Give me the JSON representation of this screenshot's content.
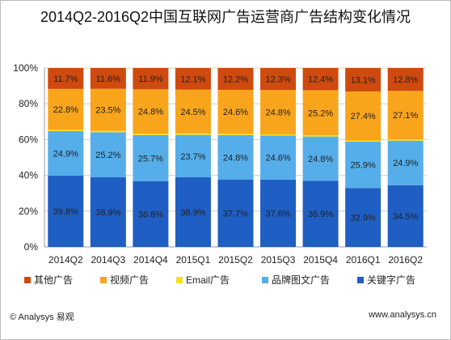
{
  "chart_data": {
    "type": "bar",
    "stacked": true,
    "title": "2014Q2-2016Q2中国互联网广告运营商广告结构变化情况",
    "categories": [
      "2014Q2",
      "2014Q3",
      "2014Q4",
      "2015Q1",
      "2015Q2",
      "2015Q3",
      "2015Q4",
      "2016Q1",
      "2016Q2"
    ],
    "ylim": [
      0,
      100
    ],
    "yticks": [
      "0%",
      "20%",
      "40%",
      "60%",
      "80%",
      "100%"
    ],
    "grid": true,
    "legend_position": "bottom",
    "series": [
      {
        "name": "关键字广告",
        "color": "#1F5EC2",
        "values": [
          39.8,
          38.9,
          36.8,
          38.9,
          37.7,
          37.6,
          36.9,
          32.9,
          34.5
        ]
      },
      {
        "name": "品牌图文广告",
        "color": "#55AEEA",
        "values": [
          24.9,
          25.2,
          25.7,
          23.7,
          24.8,
          24.6,
          24.8,
          25.9,
          24.9
        ]
      },
      {
        "name": "Email广告",
        "color": "#F6E21A",
        "values": [
          0.8,
          0.8,
          0.8,
          0.8,
          0.7,
          0.7,
          0.7,
          0.7,
          0.7
        ]
      },
      {
        "name": "视频广告",
        "color": "#F9A51B",
        "values": [
          22.8,
          23.5,
          24.8,
          24.5,
          24.6,
          24.8,
          25.2,
          27.4,
          27.1
        ]
      },
      {
        "name": "其他广告",
        "color": "#CF4A0E",
        "values": [
          11.7,
          11.6,
          11.9,
          12.1,
          12.2,
          12.3,
          12.4,
          13.1,
          12.8
        ]
      }
    ],
    "legend_order": [
      "其他广告",
      "视频广告",
      "Email广告",
      "品牌图文广告",
      "关键字广告"
    ]
  },
  "footer": {
    "source": "© Analysys 易观",
    "url": "www.analysys.cn"
  }
}
